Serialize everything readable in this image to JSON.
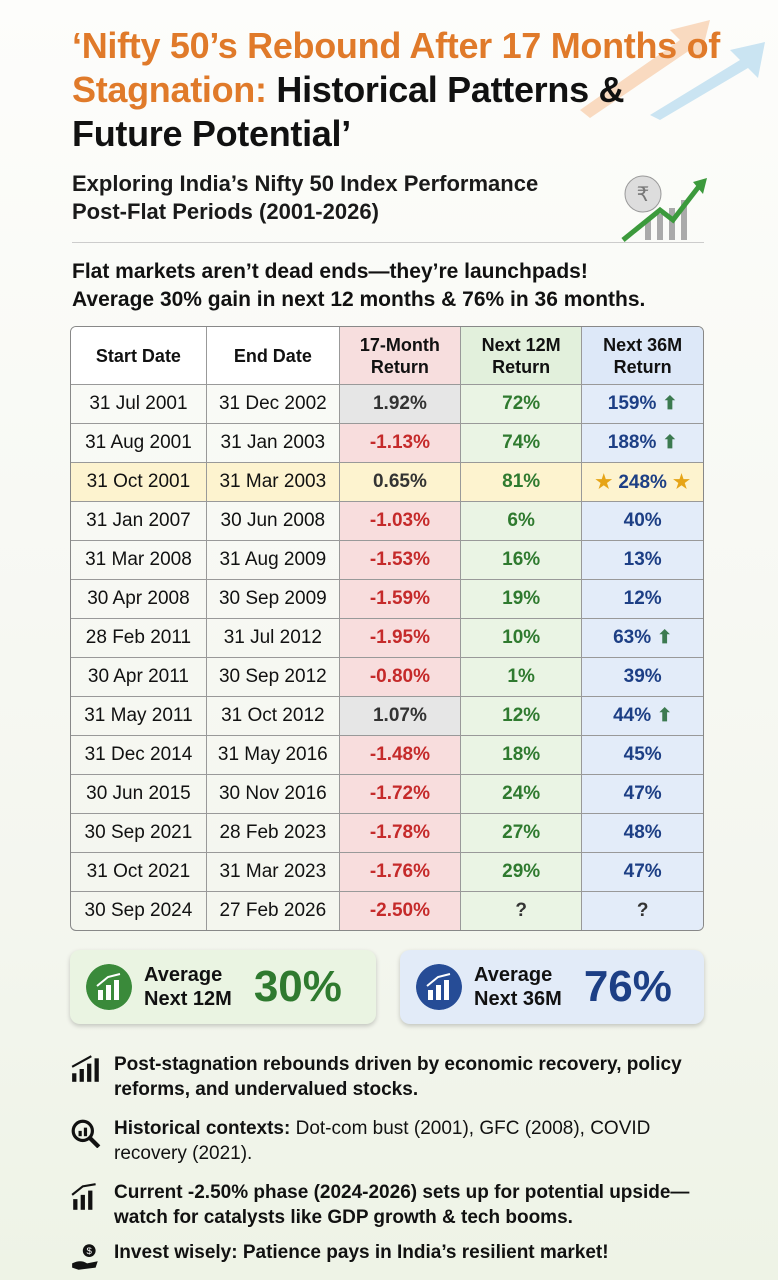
{
  "title": {
    "highlight": "‘Nifty 50’s Rebound After 17 Months of Stagnation:",
    "rest": "Historical Patterns & Future Potential’"
  },
  "subtitle": [
    "Exploring India’s Nifty 50 Index Performance",
    "Post-Flat Periods (2001-2026)"
  ],
  "tagline": [
    "Flat markets aren’t dead ends—they’re launchpads!",
    "Average 30% gain in next 12 months & 76% in 36 months."
  ],
  "table": {
    "header": [
      "Start Date",
      "End Date",
      "17-Month Return",
      "Next 12M Return",
      "Next 36M Return"
    ],
    "rows": [
      [
        "31 Jul 2001",
        "31 Dec 2002",
        "1.92%",
        "72%",
        "159%"
      ],
      [
        "31 Aug 2001",
        "31 Jan 2003",
        "-1.13%",
        "74%",
        "188%"
      ],
      [
        "31 Oct 2001",
        "31 Mar 2003",
        "0.65%",
        "81%",
        "248%"
      ],
      [
        "31 Jan 2007",
        "30 Jun 2008",
        "-1.03%",
        "6%",
        "40%"
      ],
      [
        "31 Mar 2008",
        "31 Aug 2009",
        "-1.53%",
        "16%",
        "13%"
      ],
      [
        "30 Apr 2008",
        "30 Sep 2009",
        "-1.59%",
        "19%",
        "12%"
      ],
      [
        "28 Feb 2011",
        "31 Jul 2012",
        "-1.95%",
        "10%",
        "63%"
      ],
      [
        "30 Apr 2011",
        "30 Sep 2012",
        "-0.80%",
        "1%",
        "39%"
      ],
      [
        "31 May 2011",
        "31 Oct 2012",
        "1.07%",
        "12%",
        "44%"
      ],
      [
        "31 Dec 2014",
        "31 May 2016",
        "-1.48%",
        "18%",
        "45%"
      ],
      [
        "30 Jun 2015",
        "30 Nov 2016",
        "-1.72%",
        "24%",
        "47%"
      ],
      [
        "30 Sep 2021",
        "28 Feb 2023",
        "-1.78%",
        "27%",
        "48%"
      ],
      [
        "31 Oct 2021",
        "31 Mar 2023",
        "-1.76%",
        "29%",
        "47%"
      ],
      [
        "30 Sep 2024",
        "27 Feb 2026",
        "-2.50%",
        "?",
        "?"
      ]
    ]
  },
  "averages": [
    {
      "label": [
        "Average",
        "Next 12M"
      ],
      "value": "30%"
    },
    {
      "label": [
        "Average",
        "Next 36M"
      ],
      "value": "76%"
    }
  ],
  "bullets": [
    {
      "bold": "Post-stagnation rebounds driven by economic recovery, policy reforms, and undervalued stocks.",
      "text": ""
    },
    {
      "bold": "Historical contexts:",
      "text": " Dot-com bust (2001), GFC (2008), COVID recovery (2021)."
    },
    {
      "bold": "Current -2.50% phase (2024-2026) sets up for potential upside—watch for catalysts like GDP growth & tech booms.",
      "text": ""
    },
    {
      "bold": "Invest wisely: Patience pays in India’s resilient market!",
      "text": ""
    }
  ]
}
